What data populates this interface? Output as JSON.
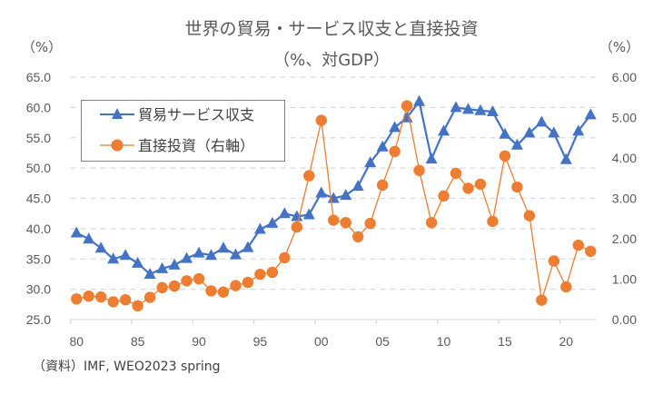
{
  "chart_data": {
    "type": "line",
    "title": "世界の貿易・サービス収支と直接投資",
    "subtitle": "（%、対GDP）",
    "left_unit": "（%）",
    "right_unit": "（%）",
    "source": "（資料）IMF, WEO2023 spring",
    "xlabel": "",
    "ylabel": "",
    "x": [
      1980,
      1981,
      1982,
      1983,
      1984,
      1985,
      1986,
      1987,
      1988,
      1989,
      1990,
      1991,
      1992,
      1993,
      1994,
      1995,
      1996,
      1997,
      1998,
      1999,
      2000,
      2001,
      2002,
      2003,
      2004,
      2005,
      2006,
      2007,
      2008,
      2009,
      2010,
      2011,
      2012,
      2013,
      2014,
      2015,
      2016,
      2017,
      2018,
      2019,
      2020,
      2021,
      2022
    ],
    "x_tick_labels": [
      {
        "year": 1980,
        "label": "80"
      },
      {
        "year": 1985,
        "label": "85"
      },
      {
        "year": 1990,
        "label": "90"
      },
      {
        "year": 1995,
        "label": "95"
      },
      {
        "year": 2000,
        "label": "00"
      },
      {
        "year": 2005,
        "label": "05"
      },
      {
        "year": 2010,
        "label": "10"
      },
      {
        "year": 2015,
        "label": "15"
      },
      {
        "year": 2020,
        "label": "20"
      }
    ],
    "ylim_left": [
      25,
      65
    ],
    "y_ticks_left": [
      "25.0",
      "30.0",
      "35.0",
      "40.0",
      "45.0",
      "50.0",
      "55.0",
      "60.0",
      "65.0"
    ],
    "ylim_right": [
      0,
      6
    ],
    "y_ticks_right": [
      "0.00",
      "1.00",
      "2.00",
      "3.00",
      "4.00",
      "5.00",
      "6.00"
    ],
    "grid": true,
    "legend_position": "top-left",
    "series": [
      {
        "name": "貿易サービス収支",
        "axis": "left",
        "marker": "triangle",
        "color": "#4472C4",
        "values": [
          39.3,
          38.3,
          36.8,
          35.0,
          35.6,
          34.3,
          32.5,
          33.4,
          34.0,
          35.1,
          36.0,
          35.6,
          36.8,
          35.7,
          36.9,
          39.9,
          40.9,
          42.5,
          42.0,
          42.3,
          45.9,
          45.0,
          45.5,
          47.0,
          50.9,
          53.5,
          56.7,
          58.3,
          61.0,
          51.5,
          56.1,
          60.0,
          59.7,
          59.5,
          59.3,
          55.6,
          53.8,
          55.8,
          57.6,
          55.8,
          51.4,
          56.1,
          58.8
        ]
      },
      {
        "name": "直接投資（右軸）",
        "axis": "right",
        "marker": "circle",
        "color": "#ED7D31",
        "values": [
          0.51,
          0.58,
          0.56,
          0.44,
          0.49,
          0.34,
          0.55,
          0.79,
          0.83,
          0.96,
          1.01,
          0.71,
          0.68,
          0.84,
          0.92,
          1.12,
          1.17,
          1.53,
          2.29,
          3.56,
          4.93,
          2.46,
          2.4,
          2.05,
          2.38,
          3.33,
          4.16,
          5.29,
          3.69,
          2.4,
          3.06,
          3.62,
          3.25,
          3.35,
          2.43,
          4.05,
          3.28,
          2.57,
          0.48,
          1.45,
          0.81,
          1.84,
          1.69
        ]
      }
    ]
  }
}
